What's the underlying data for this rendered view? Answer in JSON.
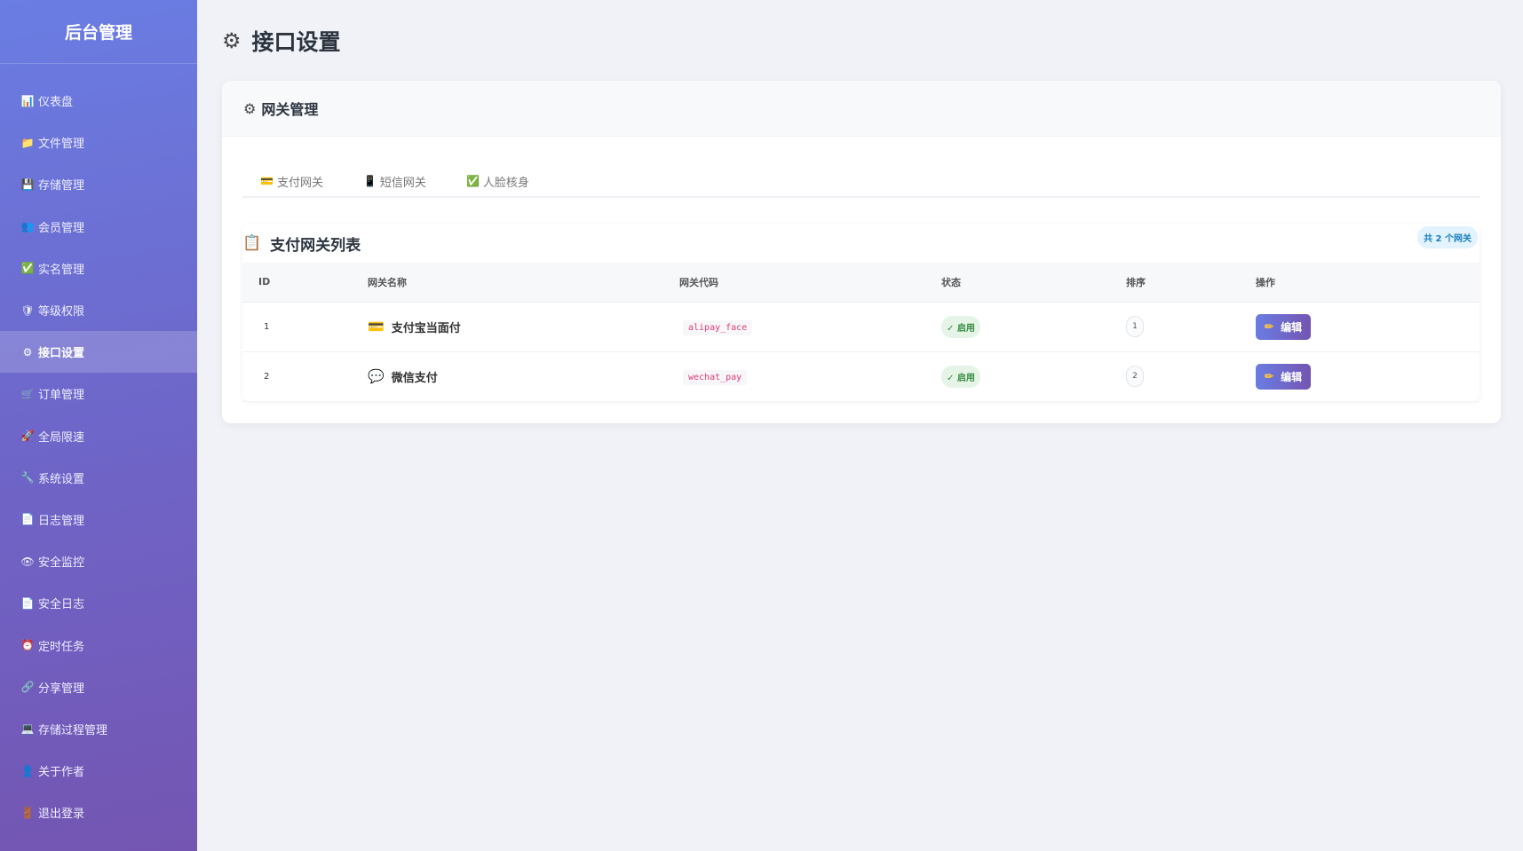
{
  "sidebar": {
    "brand": "后台管理",
    "items": [
      {
        "icon": "📊",
        "label": "仪表盘"
      },
      {
        "icon": "📁",
        "label": "文件管理"
      },
      {
        "icon": "💾",
        "label": "存储管理"
      },
      {
        "icon": "👥",
        "label": "会员管理"
      },
      {
        "icon": "✅",
        "label": "实名管理"
      },
      {
        "icon": "🛡",
        "label": "等级权限"
      },
      {
        "icon": "⚙",
        "label": "接口设置",
        "active": true
      },
      {
        "icon": "🛒",
        "label": "订单管理"
      },
      {
        "icon": "🚀",
        "label": "全局限速"
      },
      {
        "icon": "🔧",
        "label": "系统设置"
      },
      {
        "icon": "📄",
        "label": "日志管理"
      },
      {
        "icon": "👁",
        "label": "安全监控"
      },
      {
        "icon": "📄",
        "label": "安全日志"
      },
      {
        "icon": "⏰",
        "label": "定时任务"
      },
      {
        "icon": "🔗",
        "label": "分享管理"
      },
      {
        "icon": "💻",
        "label": "存储过程管理"
      },
      {
        "icon": "👤",
        "label": "关于作者"
      },
      {
        "icon": "🚪",
        "label": "退出登录"
      }
    ]
  },
  "header": {
    "icon": "⚙",
    "title": "接口设置"
  },
  "card": {
    "icon": "⚙",
    "title": "网关管理",
    "tabs": [
      {
        "icon": "💳",
        "label": "支付网关"
      },
      {
        "icon": "📱",
        "label": "短信网关"
      },
      {
        "icon": "✅",
        "label": "人脸核身"
      }
    ],
    "list": {
      "icon": "📋",
      "title": "支付网关列表",
      "count": "共 2 个网关",
      "columns": [
        "ID",
        "网关名称",
        "网关代码",
        "状态",
        "排序",
        "操作"
      ],
      "rows": [
        {
          "id": "1",
          "icon": "💳",
          "name": "支付宝当面付",
          "code": "alipay_face",
          "status": "✓ 启用",
          "sort": "1",
          "action": "编辑"
        },
        {
          "id": "2",
          "icon": "💬",
          "name": "微信支付",
          "code": "wechat_pay",
          "status": "✓ 启用",
          "sort": "2",
          "action": "编辑"
        }
      ]
    }
  },
  "colors": {
    "sidebar_start": "#6a7de3",
    "sidebar_end": "#7455b2",
    "status_green": "#2f8a3a",
    "code_pink": "#e0397a"
  }
}
